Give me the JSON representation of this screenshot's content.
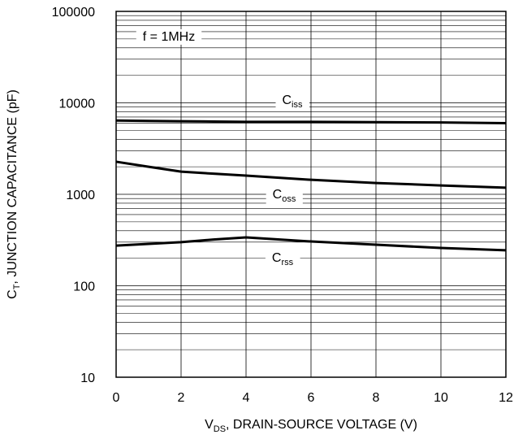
{
  "chart_data": {
    "type": "line",
    "annotation": "f = 1MHz",
    "xlabel": {
      "main": "V",
      "sub": "DS",
      "rest": ", DRAIN-SOURCE VOLTAGE (V)"
    },
    "ylabel": {
      "main": "C",
      "sub": "T",
      "rest": ", JUNCTION CAPACITANCE (pF)"
    },
    "x": [
      0,
      1,
      2,
      3,
      4,
      6,
      8,
      10,
      12
    ],
    "series": [
      {
        "name": "C",
        "name_subscript": "iss",
        "color": "#000000",
        "values": [
          6400,
          6350,
          6300,
          6250,
          6200,
          6200,
          6150,
          6100,
          6000
        ]
      },
      {
        "name": "C",
        "name_subscript": "oss",
        "color": "#000000",
        "values": [
          2270,
          2000,
          1770,
          1680,
          1600,
          1440,
          1330,
          1250,
          1180
        ]
      },
      {
        "name": "C",
        "name_subscript": "rss",
        "color": "#000000",
        "values": [
          275,
          287,
          300,
          320,
          338,
          305,
          281,
          259,
          244
        ]
      }
    ],
    "xlim": [
      0,
      12
    ],
    "xticks": [
      0,
      2,
      4,
      6,
      8,
      10,
      12
    ],
    "ylim": [
      10,
      100000
    ],
    "yticks": [
      10,
      100,
      1000,
      10000,
      100000
    ],
    "ylog": true,
    "grid": true
  }
}
